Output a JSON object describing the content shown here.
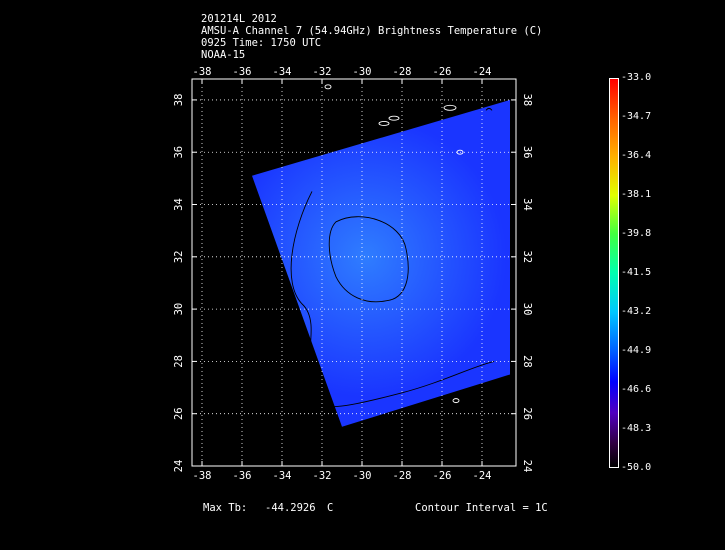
{
  "header": {
    "line1": "201214L 2012",
    "line2": "AMSU-A Channel 7 (54.94GHz) Brightness Temperature (C)",
    "line3": "0925 Time: 1750 UTC",
    "line4": "NOAA-15"
  },
  "footer": {
    "max_label": "Max Tb:",
    "max_value": "-44.2926",
    "max_unit": "C",
    "contour": "Contour Interval = 1C"
  },
  "colorbar": {
    "labels": [
      "-33.0",
      "-34.7",
      "-36.4",
      "-38.1",
      "-39.8",
      "-41.5",
      "-43.2",
      "-44.9",
      "-46.6",
      "-48.3",
      "-50.0"
    ],
    "min": -50.0,
    "max": -33.0
  },
  "colors": {
    "background": "#000000",
    "swath": "#1a35ff",
    "swath_center": "#2f7dff",
    "grid": "#ffffff",
    "contour": "#000000"
  },
  "chart_data": {
    "type": "heatmap",
    "title": "AMSU-A Channel 7 (54.94GHz) Brightness Temperature (C)",
    "xlim": [
      -38.5,
      -22.3
    ],
    "ylim": [
      24,
      38.8
    ],
    "xticks": [
      -38,
      -36,
      -34,
      -32,
      -30,
      -28,
      -26,
      -24
    ],
    "yticks": [
      24,
      26,
      28,
      30,
      32,
      34,
      36,
      38
    ],
    "grid": true,
    "swath_corners_lon_lat": [
      [
        -35.5,
        35.1
      ],
      [
        -22.6,
        38.0
      ],
      [
        -22.6,
        27.5
      ],
      [
        -31.0,
        25.5
      ]
    ],
    "max_tb": -44.2926,
    "contour_interval": 1,
    "warm_core_center_lon_lat": [
      -29.8,
      32.0
    ]
  }
}
